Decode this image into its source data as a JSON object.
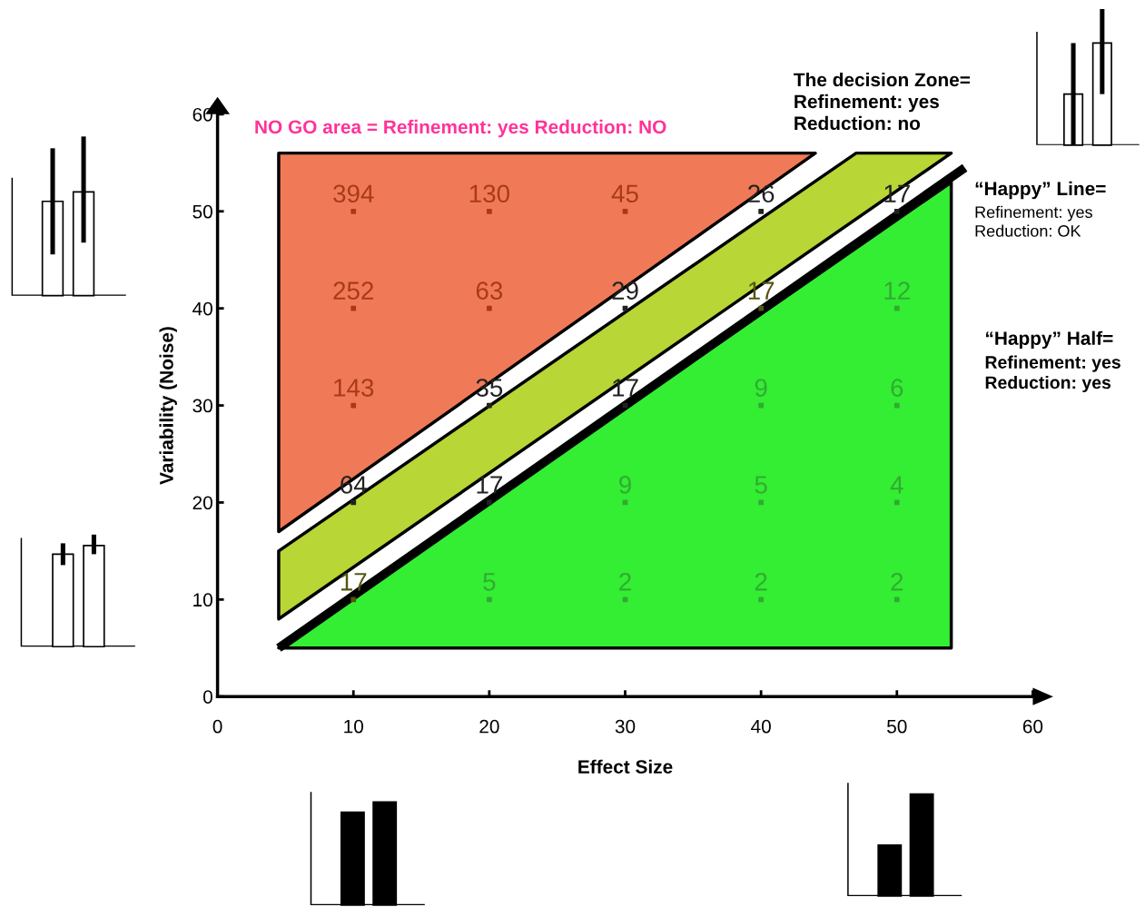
{
  "chart_data": {
    "type": "scatter",
    "xlabel": "Effect Size",
    "ylabel": "Variability (Noise)",
    "xlim": [
      0,
      60
    ],
    "ylim": [
      0,
      60
    ],
    "xticks": [
      0,
      10,
      20,
      30,
      40,
      50,
      60
    ],
    "yticks": [
      0,
      10,
      20,
      30,
      40,
      50,
      60
    ],
    "grid": false,
    "series": [
      {
        "type": "area",
        "color": "#f07a58",
        "x": [
          4.5,
          4.5,
          44
        ],
        "values": [
          17,
          56,
          56
        ]
      },
      {
        "type": "area",
        "color": "#b8d635",
        "x": [
          4.5,
          4.5,
          47,
          54
        ],
        "values": [
          8,
          15,
          56,
          56
        ]
      },
      {
        "type": "area",
        "color": "#33ee33",
        "x": [
          4.5,
          54,
          54
        ],
        "values": [
          5,
          53,
          5
        ]
      },
      {
        "type": "line",
        "color": "#000000",
        "x": [
          4.5,
          55
        ],
        "values": [
          5,
          54.5
        ]
      },
      {
        "marker": "square",
        "x": [
          10,
          20,
          30,
          40,
          50,
          10,
          20,
          30,
          40,
          50,
          10,
          20,
          30,
          40,
          50,
          10,
          20,
          30,
          40,
          50,
          10,
          20,
          30,
          40,
          50
        ],
        "values": [
          50,
          50,
          50,
          50,
          50,
          40,
          40,
          40,
          40,
          40,
          30,
          30,
          30,
          30,
          30,
          20,
          20,
          20,
          20,
          20,
          10,
          10,
          10,
          10,
          10
        ],
        "colors": [
          "#a83a1a",
          "#a83a1a",
          "#a83a1a",
          "#222222",
          "#222222",
          "#a83a1a",
          "#a83a1a",
          "#222222",
          "#555511",
          "#33aa33",
          "#a83a1a",
          "#222222",
          "#222222",
          "#33aa33",
          "#33aa33",
          "#222222",
          "#222222",
          "#33aa33",
          "#33aa33",
          "#33aa33",
          "#555511",
          "#33aa33",
          "#33aa33",
          "#33aa33",
          "#33aa33"
        ]
      }
    ],
    "annotations": [
      "NO GO area = Refinement: yes Reduction: NO",
      "The decision Zone=\nRefinement: yes\nReduction: no",
      "“Happy” Line=\nRefinement: yes\nReduction: OK",
      "“Happy” Half=\nRefinement: yes\nReduction: yes",
      {
        "text": "394",
        "x": 10,
        "y": 50
      },
      {
        "text": "130",
        "x": 20,
        "y": 50
      },
      {
        "text": "45",
        "x": 30,
        "y": 50
      },
      {
        "text": "26",
        "x": 40,
        "y": 50
      },
      {
        "text": "17",
        "x": 50,
        "y": 50
      },
      {
        "text": "252",
        "x": 10,
        "y": 40
      },
      {
        "text": "63",
        "x": 20,
        "y": 40
      },
      {
        "text": "29",
        "x": 30,
        "y": 40
      },
      {
        "text": "17",
        "x": 40,
        "y": 40
      },
      {
        "text": "12",
        "x": 50,
        "y": 40
      },
      {
        "text": "143",
        "x": 10,
        "y": 30
      },
      {
        "text": "35",
        "x": 20,
        "y": 30
      },
      {
        "text": "17",
        "x": 30,
        "y": 30
      },
      {
        "text": "9",
        "x": 40,
        "y": 30
      },
      {
        "text": "6",
        "x": 50,
        "y": 30
      },
      {
        "text": "64",
        "x": 10,
        "y": 20
      },
      {
        "text": "17",
        "x": 20,
        "y": 20
      },
      {
        "text": "9",
        "x": 30,
        "y": 20
      },
      {
        "text": "5",
        "x": 40,
        "y": 20
      },
      {
        "text": "4",
        "x": 50,
        "y": 20
      },
      {
        "text": "17",
        "x": 10,
        "y": 10
      },
      {
        "text": "5",
        "x": 20,
        "y": 10
      },
      {
        "text": "2",
        "x": 30,
        "y": 10
      },
      {
        "text": "2",
        "x": 40,
        "y": 10
      },
      {
        "text": "2",
        "x": 50,
        "y": 10
      }
    ]
  }
}
